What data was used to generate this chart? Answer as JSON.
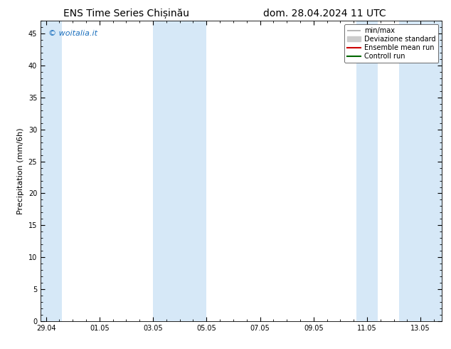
{
  "title_left": "ENS Time Series Chișinău",
  "title_right": "dom. 28.04.2024 11 UTC",
  "ylabel": "Precipitation (mm/6h)",
  "watermark": "© woitalia.it",
  "watermark_color": "#1a6fbd",
  "ylim": [
    0,
    47
  ],
  "yticks": [
    0,
    5,
    10,
    15,
    20,
    25,
    30,
    35,
    40,
    45
  ],
  "xtick_labels": [
    "29.04",
    "01.05",
    "03.05",
    "05.05",
    "07.05",
    "09.05",
    "11.05",
    "13.05"
  ],
  "x_positions": [
    0,
    2,
    4,
    6,
    8,
    10,
    12,
    14
  ],
  "xlim": [
    -0.2,
    14.8
  ],
  "background_color": "#ffffff",
  "plot_bg_color": "#ffffff",
  "shaded_band_color": "#d6e8f7",
  "shaded_bands_x": [
    [
      -0.2,
      0.6
    ],
    [
      4.0,
      6.0
    ],
    [
      11.6,
      12.4
    ],
    [
      13.2,
      14.8
    ]
  ],
  "legend_entries": [
    {
      "label": "min/max",
      "color": "#aaaaaa",
      "lw": 1.2,
      "style": "errorbar"
    },
    {
      "label": "Deviazione standard",
      "color": "#cccccc",
      "lw": 6,
      "style": "patch"
    },
    {
      "label": "Ensemble mean run",
      "color": "#cc0000",
      "lw": 1.5,
      "style": "line"
    },
    {
      "label": "Controll run",
      "color": "#006600",
      "lw": 1.5,
      "style": "line"
    }
  ],
  "title_fontsize": 10,
  "tick_fontsize": 7,
  "ylabel_fontsize": 8,
  "watermark_fontsize": 8,
  "legend_fontsize": 7
}
